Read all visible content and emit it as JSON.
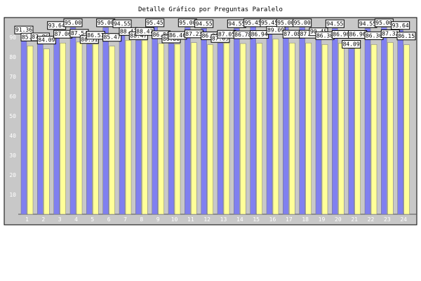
{
  "chart_data": {
    "type": "bar",
    "title": "Detalle Gráfico por Preguntas Paralelo",
    "xlabel": "",
    "ylabel": "",
    "ylim": [
      0,
      100
    ],
    "yticks": [
      10,
      20,
      30,
      40,
      50,
      60,
      70,
      80,
      90
    ],
    "categories": [
      "1",
      "2",
      "3",
      "4",
      "5",
      "6",
      "7",
      "8",
      "9",
      "10",
      "11",
      "12",
      "13",
      "14",
      "15",
      "16",
      "17",
      "18",
      "19",
      "20",
      "21",
      "22",
      "23",
      "24"
    ],
    "series": [
      {
        "name": "",
        "color": "#8080f0",
        "values": [
          91.36,
          87.86,
          93.64,
          95.0,
          86.51,
          95.0,
          94.55,
          88.47,
          95.45,
          86.8,
          95.0,
          94.55,
          87.05,
          94.55,
          95.45,
          95.45,
          95.0,
          95.0,
          90.45,
          94.55,
          84.09,
          94.55,
          95.0,
          93.64
        ]
      },
      {
        "name": "",
        "color": "#ffff99",
        "values": [
          85.61,
          84.09,
          87.06,
          87.54,
          86.51,
          85.47,
          88.47,
          88.47,
          86.8,
          86.46,
          87.23,
          86.25,
          87.05,
          86.78,
          86.94,
          89.09,
          87.08,
          87.08,
          86.3,
          86.96,
          86.96,
          86.3,
          87.32,
          86.15
        ]
      }
    ],
    "grid": false,
    "legend": "none"
  }
}
